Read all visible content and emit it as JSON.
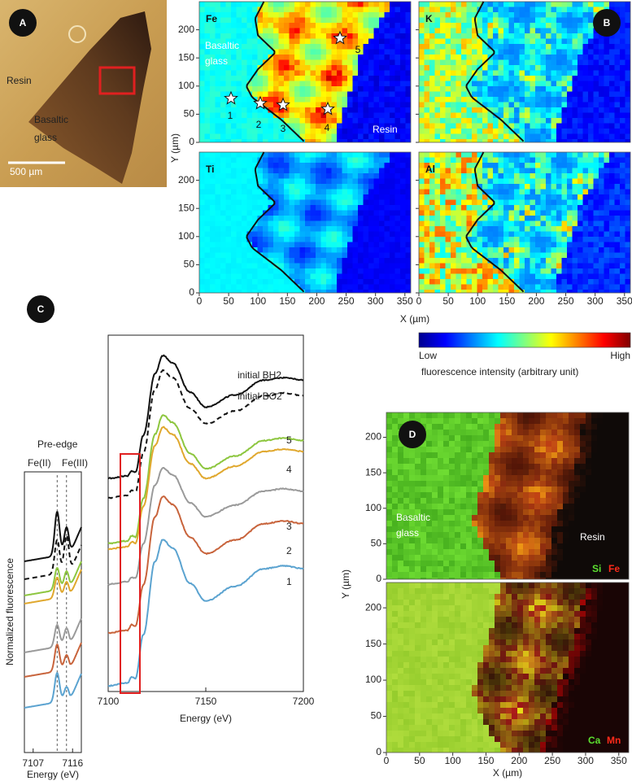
{
  "panel_a": {
    "label": "A",
    "resin": "Resin",
    "glass": [
      "Basaltic",
      "glass"
    ],
    "scale_bar": "500 µm"
  },
  "panel_b": {
    "label": "B",
    "maps": [
      {
        "element": "Fe"
      },
      {
        "element": "K"
      },
      {
        "element": "Ti"
      },
      {
        "element": "Al"
      }
    ],
    "fe_annotations": {
      "glass": [
        "Basaltic",
        "glass"
      ],
      "resin": "Resin",
      "points": [
        "1",
        "2",
        "3",
        "4",
        "5"
      ]
    },
    "xlim": [
      0,
      360
    ],
    "ylim": [
      0,
      250
    ],
    "xticks": [
      0,
      50,
      100,
      150,
      200,
      250,
      300,
      350
    ],
    "yticks": [
      0,
      50,
      100,
      150,
      200
    ],
    "x_label": "X (µm)",
    "y_label": "Y (µm)",
    "colorbar": {
      "low": "Low",
      "high": "High",
      "label": "fluorescence intensity (arbitrary unit)"
    }
  },
  "panel_c": {
    "label": "C",
    "pre_edge": {
      "title": "Pre-edge",
      "fe2": "Fe(II)",
      "fe3": "Fe(III)",
      "xlim": [
        7105,
        7118
      ],
      "xticks": [
        7107,
        7116
      ],
      "x_label": "Energy (eV)",
      "y_label": "Normalized fluorescence"
    },
    "xanes": {
      "xlim": [
        7100,
        7200
      ],
      "xticks": [
        7100,
        7150,
        7200
      ],
      "x_label": "Energy (eV)",
      "curves": [
        "initial BH2",
        "initial BO2",
        "5",
        "4",
        "3",
        "2",
        "1"
      ]
    }
  },
  "panel_d": {
    "label": "D",
    "glass": [
      "Basaltic",
      "glass"
    ],
    "resin": "Resin",
    "maps": [
      {
        "elements": [
          "Si",
          "Fe"
        ]
      },
      {
        "elements": [
          "Ca",
          "Mn"
        ]
      }
    ],
    "xlim": [
      0,
      365
    ],
    "ylim": [
      0,
      235
    ],
    "xticks": [
      0,
      50,
      100,
      150,
      200,
      250,
      300,
      350
    ],
    "yticks": [
      0,
      50,
      100,
      150,
      200
    ],
    "x_label": "X (µm)",
    "y_label": "Y (µm)"
  }
}
